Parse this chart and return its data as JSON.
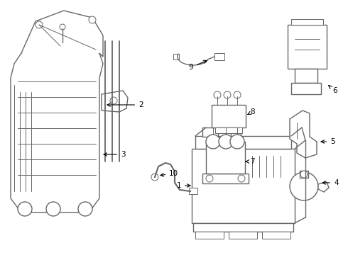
{
  "bg_color": "#ffffff",
  "line_color": "#666666",
  "label_color": "#000000",
  "fig_w": 4.9,
  "fig_h": 3.6,
  "dpi": 100
}
